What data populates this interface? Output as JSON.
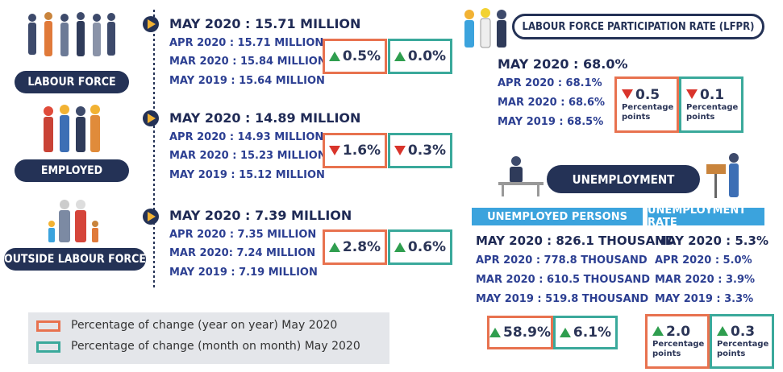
{
  "sections": [
    {
      "label": "LABOUR FORCE",
      "headline": "MAY 2020 : 15.71 MILLION",
      "lines": [
        "APR 2020 : 15.71 MILLION",
        "MAR 2020 : 15.84 MILLION",
        "MAY 2019 : 15.64 MILLION"
      ],
      "yoy": "0.5%",
      "mom": "0.0%"
    },
    {
      "label": "EMPLOYED",
      "headline": "MAY 2020 : 14.89 MILLION",
      "lines": [
        "APR 2020 : 14.93 MILLION",
        "MAR 2020 : 15.23 MILLION",
        "MAY 2019 : 15.12 MILLION"
      ],
      "yoy": "1.6%",
      "mom": "0.3%"
    },
    {
      "label": "OUTSIDE LABOUR FORCE",
      "headline": "MAY 2020 : 7.39 MILLION",
      "lines": [
        "APR 2020 : 7.35 MILLION",
        "MAR 2020: 7.24 MILLION",
        "MAY 2019 : 7.19 MILLION"
      ],
      "yoy": "2.8%",
      "mom": "0.6%"
    }
  ],
  "lfpr": {
    "title": "LABOUR FORCE PARTICIPATION RATE (LFPR)",
    "headline": "MAY 2020 : 68.0%",
    "lines": [
      "APR 2020 : 68.1%",
      "MAR 2020 : 68.6%",
      "MAY 2019 : 68.5%"
    ],
    "yoy": "0.5",
    "mom": "0.1",
    "unit": "Percentage points"
  },
  "unemployment": {
    "title": "UNEMPLOYMENT",
    "persons": {
      "header": "UNEMPLOYED PERSONS",
      "headline": "MAY 2020 : 826.1 THOUSAND",
      "lines": [
        "APR 2020 : 778.8 THOUSAND",
        "MAR 2020 : 610.5 THOUSAND",
        "MAY 2019 : 519.8 THOUSAND"
      ],
      "yoy": "58.9%",
      "mom": "6.1%"
    },
    "rate": {
      "header": "UNEMPLOYMENT RATE",
      "headline": "MAY 2020 :  5.3%",
      "lines": [
        "APR 2020 : 5.0%",
        "MAR 2020 : 3.9%",
        "MAY 2019 : 3.3%"
      ],
      "yoy": "2.0",
      "mom": "0.3",
      "unit": "Percentage points"
    }
  },
  "legend": [
    "Percentage of change (year on year) May 2020",
    "Percentage of change (month on month) May 2020"
  ]
}
